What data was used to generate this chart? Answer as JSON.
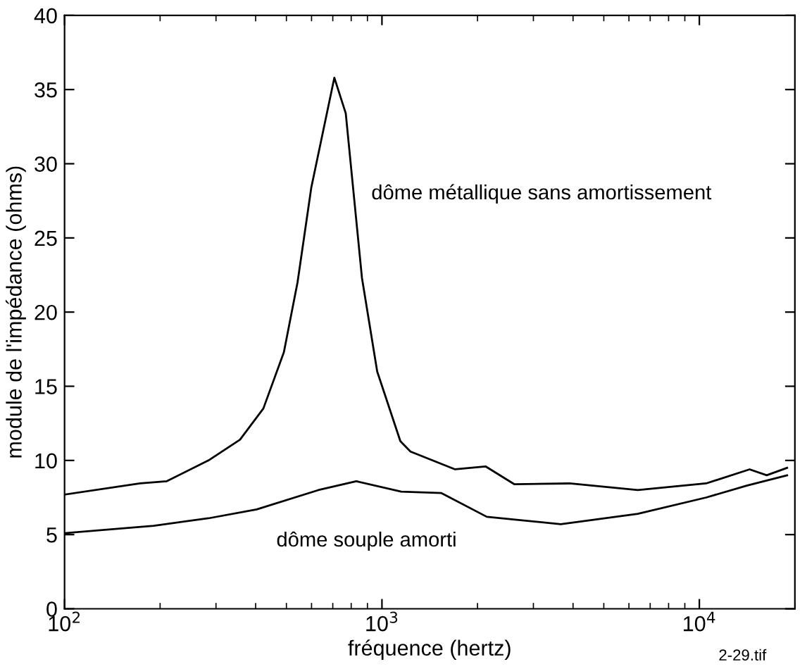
{
  "chart_data": {
    "type": "line",
    "xlabel": "fréquence (hertz)",
    "ylabel": "module de l'impédance (ohms)",
    "log": "x",
    "xlim": [
      100,
      20000
    ],
    "ylim": [
      0,
      40
    ],
    "xticks": [
      {
        "value": 100,
        "label": "10$^{2}$"
      },
      {
        "value": 1000,
        "label": "10$^{3}$"
      },
      {
        "value": 10000,
        "label": "10$^{4}$"
      }
    ],
    "yticks": [
      0,
      5,
      10,
      15,
      20,
      25,
      30,
      35,
      40
    ],
    "grid": false,
    "legend": false,
    "marker": "none",
    "line_style": "solid",
    "series": [
      {
        "name": "dôme métallique sans amortissement",
        "color": "#000000",
        "x": [
          100,
          173,
          210,
          284,
          357,
          423,
          491,
          542,
          599,
          708,
          769,
          865,
          966,
          1143,
          1230,
          1700,
          2120,
          2610,
          3900,
          6400,
          10500,
          14400,
          16300,
          18900
        ],
        "values": [
          7.7,
          8.45,
          8.6,
          10.0,
          11.4,
          13.5,
          17.3,
          22,
          28.4,
          35.8,
          33.4,
          22.3,
          16,
          11.3,
          10.6,
          9.4,
          9.6,
          8.4,
          8.45,
          8.0,
          8.45,
          9.4,
          9.0,
          9.5
        ]
      },
      {
        "name": "dôme souple amorti",
        "color": "#000000",
        "x": [
          100,
          191,
          284,
          403,
          630,
          830,
          1150,
          1540,
          2140,
          3660,
          6400,
          10500,
          14100,
          18900
        ],
        "values": [
          5.1,
          5.6,
          6.1,
          6.7,
          8.0,
          8.6,
          7.9,
          7.8,
          6.2,
          5.7,
          6.4,
          7.5,
          8.3,
          9.0
        ]
      }
    ],
    "annotations": [
      "2-29.tif"
    ]
  }
}
